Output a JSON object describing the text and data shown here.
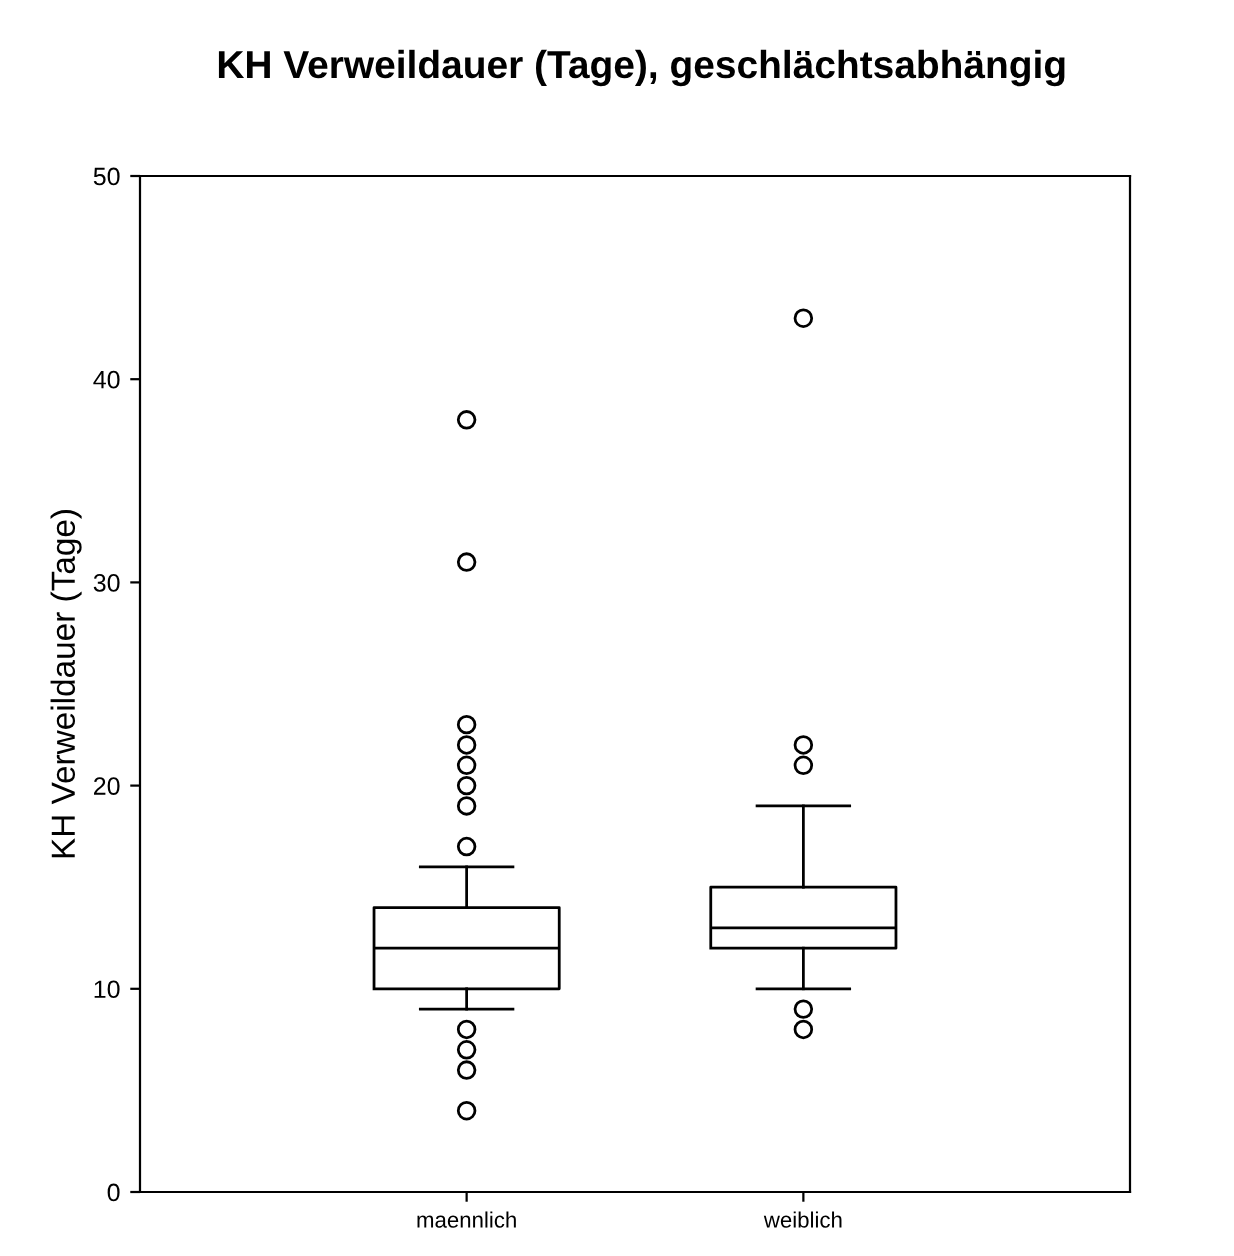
{
  "chart_data": {
    "type": "box",
    "title": "KH Verweildauer (Tage), geschlächtsabhängig",
    "ylabel": "KH Verweildauer (Tage)",
    "categories": [
      "maennlich",
      "weiblich"
    ],
    "boxes": [
      {
        "low": 9,
        "q1": 10,
        "median": 12,
        "q3": 14,
        "high": 16,
        "outliers": [
          38,
          31,
          23,
          22,
          21,
          20,
          19,
          17,
          8,
          7,
          6,
          4
        ]
      },
      {
        "low": 10,
        "q1": 12,
        "median": 13,
        "q3": 15,
        "high": 19,
        "outliers": [
          43,
          22,
          21,
          9,
          8
        ]
      }
    ],
    "ylim": [
      0,
      50
    ],
    "yticks": [
      0,
      10,
      20,
      30,
      40,
      50
    ],
    "grid": false
  }
}
